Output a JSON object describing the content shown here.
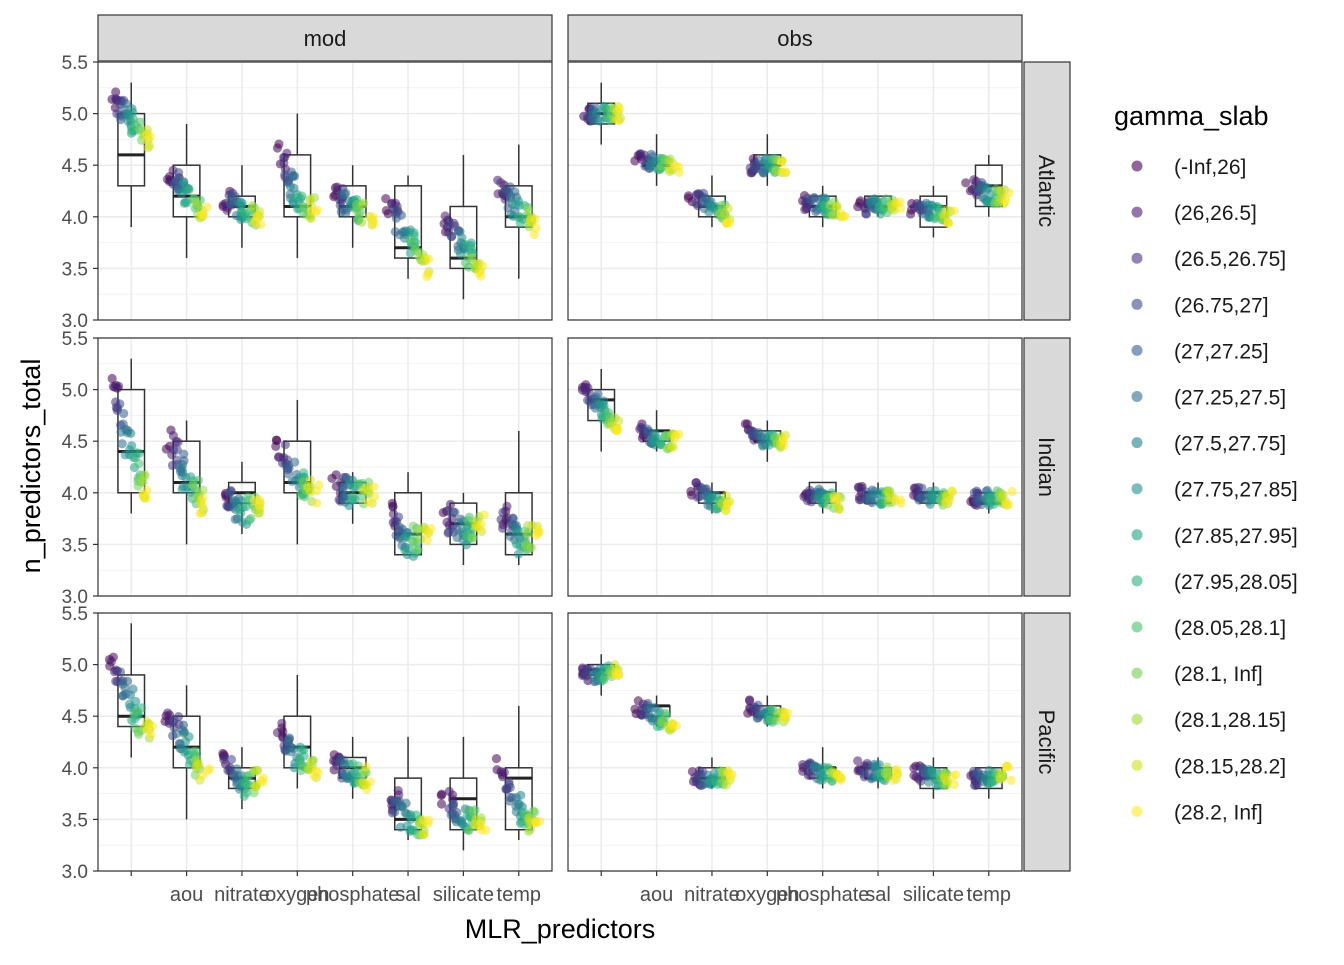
{
  "chart_data": {
    "type": "scatter",
    "subtype": "faceted boxplot with jittered points",
    "xlabel": "MLR_predictors",
    "ylabel": "n_predictors_total",
    "ylim": [
      3.0,
      5.5
    ],
    "y_ticks": [
      3.0,
      3.5,
      4.0,
      4.5,
      5.0,
      5.5
    ],
    "y_tick_labels": [
      "3.0",
      "3.5",
      "4.0",
      "4.5",
      "5.0",
      "5.5"
    ],
    "categories": [
      "",
      "aou",
      "nitrate",
      "oxygen",
      "phosphate",
      "sal",
      "silicate",
      "temp"
    ],
    "facet_columns": [
      "mod",
      "obs"
    ],
    "facet_rows": [
      "Atlantic",
      "Indian",
      "Pacific"
    ],
    "grid": true,
    "legend": {
      "title": "gamma_slab",
      "position": "right",
      "entries": [
        "(-Inf,26]",
        "(26,26.5]",
        "(26.5,26.75]",
        "(26.75,27]",
        "(27,27.25]",
        "(27.25,27.5]",
        "(27.5,27.75]",
        "(27.75,27.85]",
        "(27.85,27.95]",
        "(27.95,28.05]",
        "(28.05,28.1]",
        "(28.1, Inf]",
        "(28.1,28.15]",
        "(28.15,28.2]",
        "(28.2, Inf]"
      ],
      "colors": [
        "#440154",
        "#481B6D",
        "#46327E",
        "#3F4788",
        "#365C8D",
        "#2E6E8E",
        "#277F8E",
        "#21918C",
        "#1FA187",
        "#2DB27D",
        "#4AC16D",
        "#71CF57",
        "#9FDA3A",
        "#CFE11C",
        "#FDE725"
      ]
    },
    "panels": [
      {
        "col": "mod",
        "row": "Atlantic",
        "boxes": [
          [
            3.9,
            4.3,
            4.6,
            5.0,
            5.3
          ],
          [
            3.6,
            4.0,
            4.2,
            4.5,
            4.9
          ],
          [
            3.7,
            4.0,
            4.1,
            4.2,
            4.5
          ],
          [
            3.6,
            4.0,
            4.1,
            4.6,
            5.0
          ],
          [
            3.7,
            4.0,
            4.1,
            4.3,
            4.5
          ],
          [
            3.4,
            3.6,
            3.7,
            4.3,
            4.4
          ],
          [
            3.2,
            3.5,
            3.6,
            4.1,
            4.6
          ],
          [
            3.4,
            3.9,
            4.0,
            4.3,
            4.7
          ]
        ],
        "levels": [
          [
            5.1,
            4.95,
            4.7
          ],
          [
            4.4,
            4.25,
            4.0
          ],
          [
            4.15,
            4.05,
            4.0
          ],
          [
            4.6,
            4.2,
            4.05
          ],
          [
            4.2,
            4.1,
            4.0
          ],
          [
            4.1,
            3.8,
            3.5
          ],
          [
            3.95,
            3.7,
            3.5
          ],
          [
            4.3,
            4.1,
            3.9
          ]
        ],
        "spread": 0.22
      },
      {
        "col": "obs",
        "row": "Atlantic",
        "boxes": [
          [
            4.7,
            4.9,
            5.0,
            5.1,
            5.3
          ],
          [
            4.3,
            4.5,
            4.5,
            4.5,
            4.8
          ],
          [
            3.9,
            4.0,
            4.1,
            4.2,
            4.4
          ],
          [
            4.3,
            4.5,
            4.5,
            4.6,
            4.8
          ],
          [
            3.9,
            4.0,
            4.1,
            4.2,
            4.3
          ],
          [
            4.0,
            4.1,
            4.1,
            4.2,
            4.2
          ],
          [
            3.8,
            3.9,
            4.1,
            4.2,
            4.3
          ],
          [
            4.0,
            4.1,
            4.3,
            4.5,
            4.6
          ]
        ],
        "levels": [
          [
            5.0,
            5.0,
            5.0
          ],
          [
            4.6,
            4.5,
            4.5
          ],
          [
            4.2,
            4.1,
            4.0
          ],
          [
            4.5,
            4.5,
            4.5
          ],
          [
            4.15,
            4.1,
            4.05
          ],
          [
            4.1,
            4.1,
            4.1
          ],
          [
            4.1,
            4.05,
            4.0
          ],
          [
            4.3,
            4.2,
            4.2
          ]
        ],
        "spread": 0.15
      },
      {
        "col": "mod",
        "row": "Indian",
        "boxes": [
          [
            3.8,
            4.0,
            4.4,
            5.0,
            5.3
          ],
          [
            3.5,
            4.0,
            4.1,
            4.5,
            4.7
          ],
          [
            3.6,
            3.9,
            4.0,
            4.1,
            4.3
          ],
          [
            3.5,
            4.0,
            4.1,
            4.5,
            4.9
          ],
          [
            3.7,
            3.9,
            4.0,
            4.1,
            4.2
          ],
          [
            3.4,
            3.4,
            3.6,
            4.0,
            4.2
          ],
          [
            3.3,
            3.5,
            3.7,
            3.9,
            4.0
          ],
          [
            3.3,
            3.4,
            3.6,
            4.0,
            4.6
          ]
        ],
        "levels": [
          [
            5.0,
            4.4,
            4.0
          ],
          [
            4.5,
            4.1,
            3.9
          ],
          [
            4.0,
            3.8,
            3.9
          ],
          [
            4.5,
            4.1,
            4.0
          ],
          [
            4.05,
            4.0,
            4.0
          ],
          [
            3.8,
            3.5,
            3.6
          ],
          [
            3.8,
            3.6,
            3.7
          ],
          [
            3.8,
            3.5,
            3.6
          ]
        ],
        "spread": 0.25
      },
      {
        "col": "obs",
        "row": "Indian",
        "boxes": [
          [
            4.4,
            4.7,
            4.9,
            5.0,
            5.2
          ],
          [
            4.4,
            4.5,
            4.6,
            4.6,
            4.8
          ],
          [
            3.8,
            3.9,
            4.0,
            4.0,
            4.1
          ],
          [
            4.3,
            4.5,
            4.5,
            4.6,
            4.7
          ],
          [
            3.8,
            3.9,
            4.0,
            4.1,
            4.1
          ],
          [
            3.9,
            3.9,
            4.0,
            4.0,
            4.1
          ],
          [
            3.9,
            3.9,
            4.0,
            4.0,
            4.1
          ],
          [
            3.8,
            3.9,
            3.9,
            4.0,
            4.0
          ]
        ],
        "levels": [
          [
            5.0,
            4.8,
            4.6
          ],
          [
            4.6,
            4.5,
            4.5
          ],
          [
            4.05,
            3.9,
            3.9
          ],
          [
            4.6,
            4.5,
            4.5
          ],
          [
            4.0,
            3.95,
            3.9
          ],
          [
            4.0,
            3.95,
            3.95
          ],
          [
            4.0,
            3.95,
            3.95
          ],
          [
            3.95,
            3.95,
            3.95
          ]
        ],
        "spread": 0.15
      },
      {
        "col": "mod",
        "row": "Pacific",
        "boxes": [
          [
            4.1,
            4.4,
            4.5,
            4.9,
            5.4
          ],
          [
            3.5,
            4.0,
            4.2,
            4.5,
            4.8
          ],
          [
            3.6,
            3.8,
            3.9,
            4.0,
            4.2
          ],
          [
            3.8,
            4.0,
            4.2,
            4.5,
            4.9
          ],
          [
            3.7,
            3.9,
            4.0,
            4.1,
            4.3
          ],
          [
            3.3,
            3.4,
            3.5,
            3.9,
            4.3
          ],
          [
            3.2,
            3.4,
            3.7,
            3.9,
            4.3
          ],
          [
            3.3,
            3.4,
            3.9,
            4.0,
            4.6
          ]
        ],
        "levels": [
          [
            5.0,
            4.6,
            4.3
          ],
          [
            4.5,
            4.2,
            3.9
          ],
          [
            4.1,
            3.8,
            3.9
          ],
          [
            4.4,
            4.1,
            4.0
          ],
          [
            4.05,
            3.95,
            3.9
          ],
          [
            3.7,
            3.5,
            3.4
          ],
          [
            3.7,
            3.5,
            3.5
          ],
          [
            4.0,
            3.6,
            3.4
          ]
        ],
        "spread": 0.22
      },
      {
        "col": "obs",
        "row": "Pacific",
        "boxes": [
          [
            4.7,
            4.9,
            4.95,
            5.0,
            5.1
          ],
          [
            4.4,
            4.5,
            4.6,
            4.6,
            4.7
          ],
          [
            3.8,
            3.9,
            3.9,
            4.0,
            4.1
          ],
          [
            4.4,
            4.5,
            4.5,
            4.6,
            4.7
          ],
          [
            3.8,
            3.9,
            4.0,
            4.0,
            4.2
          ],
          [
            3.8,
            3.9,
            3.9,
            4.0,
            4.1
          ],
          [
            3.7,
            3.8,
            3.9,
            4.0,
            4.1
          ],
          [
            3.7,
            3.8,
            3.9,
            4.0,
            4.0
          ]
        ],
        "levels": [
          [
            4.9,
            4.9,
            4.95
          ],
          [
            4.6,
            4.5,
            4.4
          ],
          [
            3.9,
            3.9,
            3.9
          ],
          [
            4.6,
            4.5,
            4.5
          ],
          [
            4.0,
            3.95,
            3.9
          ],
          [
            4.0,
            3.95,
            3.95
          ],
          [
            3.95,
            3.9,
            3.9
          ],
          [
            3.9,
            3.9,
            3.95
          ]
        ],
        "spread": 0.15
      }
    ]
  }
}
